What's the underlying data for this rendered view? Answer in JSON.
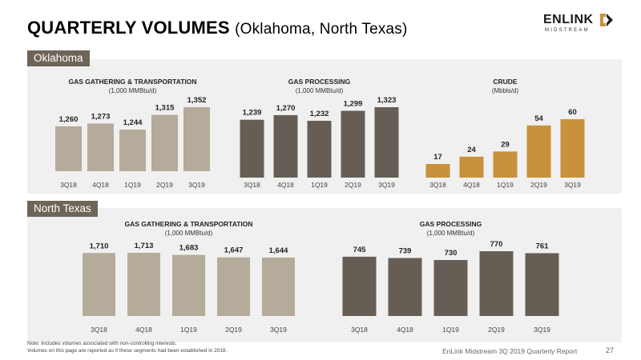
{
  "header": {
    "title": "QUARTERLY VOLUMES",
    "subtitle": "(Oklahoma, North Texas)"
  },
  "logo": {
    "word": "ENLINK",
    "tag": "MIDSTREAM"
  },
  "sections": {
    "oklahoma": "Oklahoma",
    "north_texas": "North Texas"
  },
  "footer": {
    "note_line1": "Note: Includes volumes associated with non-controlling interests.",
    "note_line2": "Volumes on this page are reported as if these segments had been established in 2018.",
    "report": "EnLink Midstream 3Q 2019 Quarterly Report",
    "page": "27"
  },
  "colors": {
    "gathering": "#b5ab9a",
    "processing": "#665e55",
    "crude": "#c8913b",
    "section_tab": "#6e6558",
    "panel": "#f0f0f0"
  },
  "chart_data": [
    {
      "id": "ok-gathering",
      "type": "bar",
      "title": "GAS GATHERING & TRANSPORTATION",
      "subtitle": "(1,000 MMBtu/d)",
      "categories": [
        "3Q18",
        "4Q18",
        "1Q19",
        "2Q19",
        "3Q19"
      ],
      "values": [
        1260,
        1273,
        1244,
        1315,
        1352
      ],
      "labels": [
        "1,260",
        "1,273",
        "1,244",
        "1,315",
        "1,352"
      ],
      "color": "#b5ab9a"
    },
    {
      "id": "ok-processing",
      "type": "bar",
      "title": "GAS PROCESSING",
      "subtitle": "(1,000 MMBtu/d)",
      "categories": [
        "3Q18",
        "4Q18",
        "1Q19",
        "2Q19",
        "3Q19"
      ],
      "values": [
        1239,
        1270,
        1232,
        1299,
        1323
      ],
      "labels": [
        "1,239",
        "1,270",
        "1,232",
        "1,299",
        "1,323"
      ],
      "color": "#665e55"
    },
    {
      "id": "ok-crude",
      "type": "bar",
      "title": "CRUDE",
      "subtitle": "(Mbbls/d)",
      "categories": [
        "3Q18",
        "4Q18",
        "1Q19",
        "2Q19",
        "3Q19"
      ],
      "values": [
        17,
        24,
        29,
        54,
        60
      ],
      "labels": [
        "17",
        "24",
        "29",
        "54",
        "60"
      ],
      "color": "#c8913b"
    },
    {
      "id": "nt-gathering",
      "type": "bar",
      "title": "GAS GATHERING & TRANSPORTATION",
      "subtitle": "(1,000 MMBtu/d)",
      "categories": [
        "3Q18",
        "4Q18",
        "1Q19",
        "2Q19",
        "3Q19"
      ],
      "values": [
        1710,
        1713,
        1683,
        1647,
        1644
      ],
      "labels": [
        "1,710",
        "1,713",
        "1,683",
        "1,647",
        "1,644"
      ],
      "color": "#b5ab9a"
    },
    {
      "id": "nt-processing",
      "type": "bar",
      "title": "GAS PROCESSING",
      "subtitle": "(1,000 MMBtu/d)",
      "categories": [
        "3Q18",
        "4Q18",
        "1Q19",
        "2Q19",
        "3Q19"
      ],
      "values": [
        745,
        739,
        730,
        770,
        761
      ],
      "labels": [
        "745",
        "739",
        "730",
        "770",
        "761"
      ],
      "color": "#665e55"
    }
  ]
}
